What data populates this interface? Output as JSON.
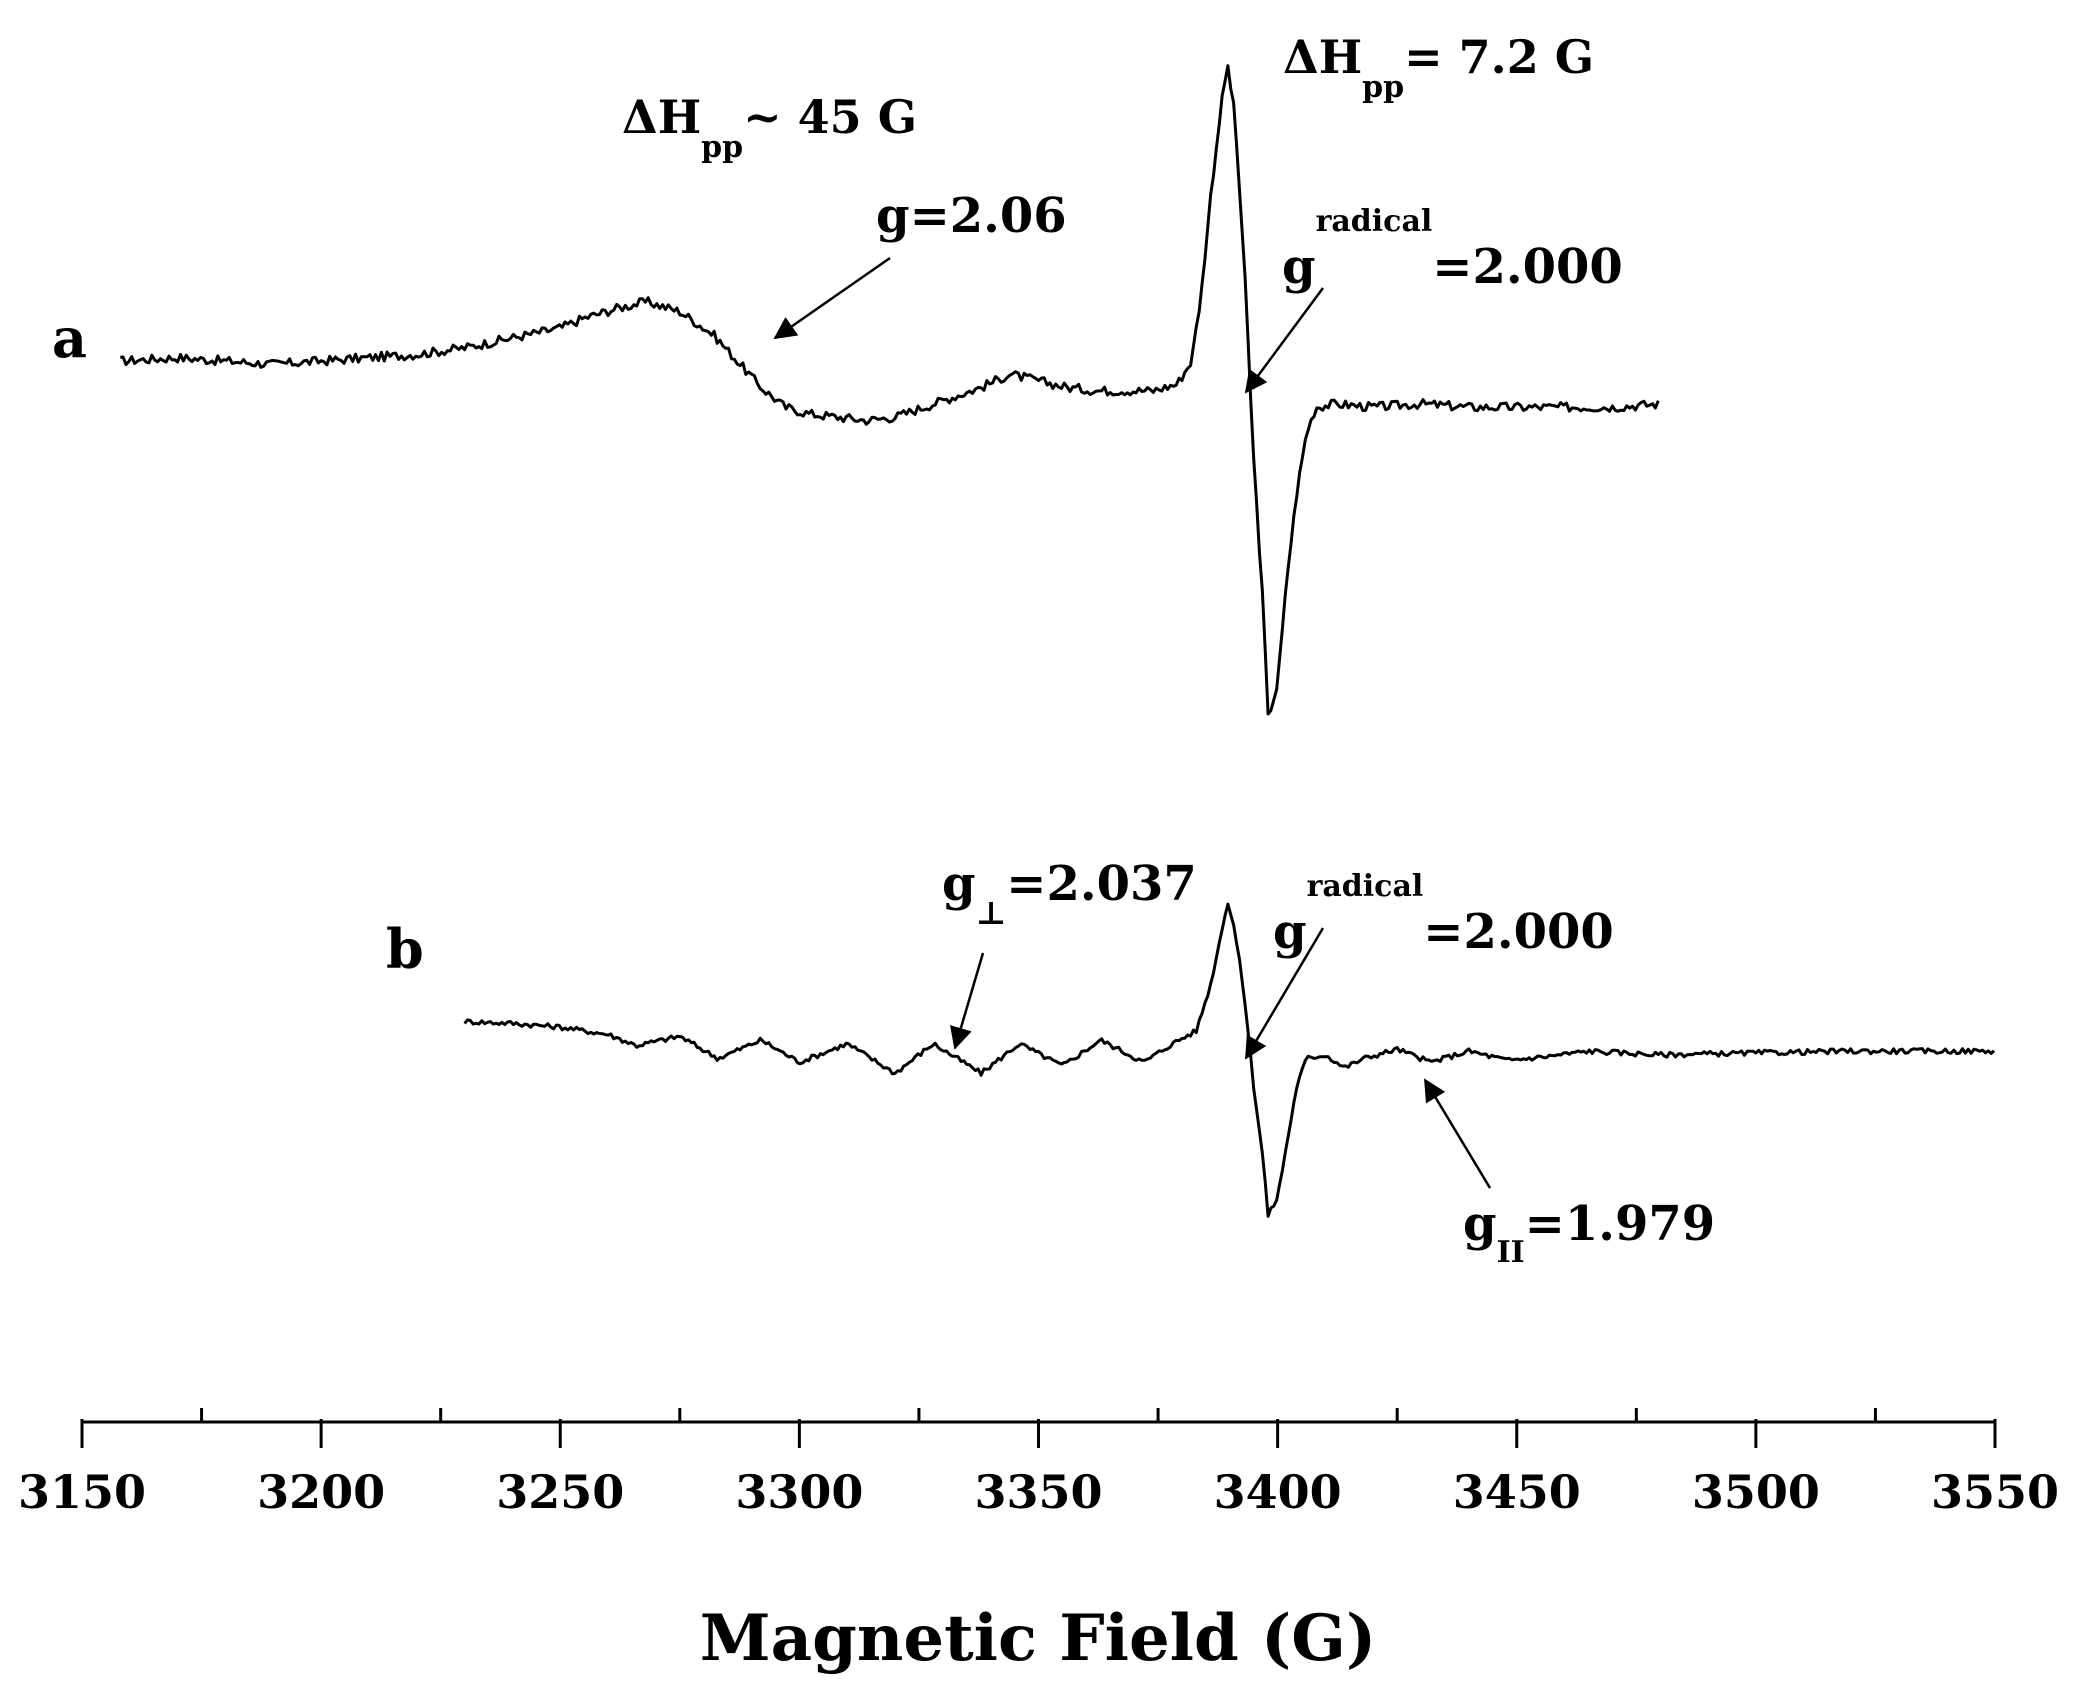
{
  "chart_data": {
    "type": "line",
    "xlabel": "Magnetic Field (G)",
    "ylabel": "",
    "xlim": [
      3150,
      3550
    ],
    "x_ticks": [
      3150,
      3200,
      3250,
      3300,
      3350,
      3400,
      3450,
      3500,
      3550
    ],
    "grid": false,
    "y_axis_shown": false,
    "series": [
      {
        "name": "a",
        "x": [
          3158,
          3170,
          3180,
          3190,
          3200,
          3210,
          3220,
          3230,
          3240,
          3250,
          3255,
          3262,
          3268,
          3275,
          3282,
          3287,
          3292,
          3297,
          3302,
          3308,
          3314,
          3320,
          3326,
          3332,
          3338,
          3344,
          3350,
          3356,
          3362,
          3368,
          3374,
          3379,
          3382,
          3384,
          3386,
          3388,
          3389.5,
          3391,
          3393,
          3395,
          3397,
          3398,
          3400,
          3402,
          3404,
          3406,
          3408,
          3412,
          3420,
          3430,
          3440,
          3450,
          3460,
          3470,
          3480
        ],
        "y": [
          0.1,
          0.11,
          0.1,
          0.09,
          0.1,
          0.11,
          0.12,
          0.14,
          0.17,
          0.2,
          0.23,
          0.26,
          0.28,
          0.25,
          0.18,
          0.1,
          0.02,
          -0.04,
          -0.06,
          -0.07,
          -0.08,
          -0.07,
          -0.04,
          -0.01,
          0.02,
          0.06,
          0.04,
          0.02,
          0.01,
          0.01,
          0.01,
          0.03,
          0.1,
          0.3,
          0.6,
          0.85,
          1.0,
          0.85,
          0.4,
          -0.2,
          -0.65,
          -0.98,
          -0.88,
          -0.55,
          -0.3,
          -0.12,
          -0.04,
          -0.03,
          -0.04,
          -0.03,
          -0.04,
          -0.04,
          -0.04,
          -0.04,
          -0.03
        ]
      },
      {
        "name": "b",
        "x": [
          3230,
          3240,
          3250,
          3260,
          3266,
          3275,
          3283,
          3292,
          3300,
          3310,
          3320,
          3328,
          3338,
          3346,
          3355,
          3363,
          3372,
          3378,
          3383,
          3386,
          3388,
          3389.5,
          3391,
          3393,
          3395,
          3397,
          3398,
          3400,
          3402,
          3404,
          3406,
          3410,
          3414,
          3418,
          3425,
          3432,
          3440,
          3448,
          3456,
          3465,
          3480,
          3500,
          3520,
          3540,
          3550
        ],
        "y": [
          0.1,
          0.09,
          0.07,
          0.03,
          -0.03,
          0.02,
          -0.1,
          0.0,
          -0.12,
          -0.02,
          -0.18,
          -0.02,
          -0.18,
          -0.02,
          -0.14,
          0.0,
          -0.12,
          -0.02,
          0.05,
          0.3,
          0.55,
          0.75,
          0.6,
          0.25,
          -0.25,
          -0.65,
          -0.95,
          -0.85,
          -0.55,
          -0.25,
          -0.1,
          -0.08,
          -0.15,
          -0.1,
          -0.05,
          -0.12,
          -0.06,
          -0.11,
          -0.09,
          -0.06,
          -0.08,
          -0.07,
          -0.06,
          -0.06,
          -0.06
        ]
      }
    ],
    "annotations": {
      "dh_a": {
        "main": "ΔH",
        "sub": "pp",
        "rest": "~ 45 G"
      },
      "dh_b": {
        "main": "ΔH",
        "sub": "pp",
        "rest": "= 7.2 G"
      },
      "g_a": "g=2.06",
      "grad_a": {
        "main": "g",
        "sup": "radical",
        "rest": "=2.000"
      },
      "gperp": {
        "main": "g",
        "sub": "⊥",
        "rest": "=2.037"
      },
      "grad_b": {
        "main": "g",
        "sup": "radical",
        "rest": "=2.000"
      },
      "gpar": {
        "main": "g",
        "sub": "II",
        "rest": "=1.979"
      }
    }
  }
}
